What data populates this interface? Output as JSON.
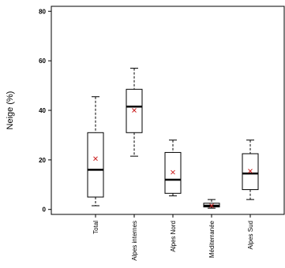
{
  "chart_data": {
    "type": "box",
    "ylabel": "Neige (%)",
    "ylim": [
      -2,
      82
    ],
    "yticks": [
      0,
      20,
      40,
      60,
      80
    ],
    "categories": [
      "Total",
      "Alpes internes",
      "Alpes Nord",
      "Méditerranée",
      "Alpes Sud"
    ],
    "boxes": [
      {
        "category": "Total",
        "whisker_low": 1.5,
        "q1": 5,
        "median": 16,
        "q3": 31,
        "whisker_high": 45.5,
        "mean": 20.5
      },
      {
        "category": "Alpes internes",
        "whisker_low": 21.5,
        "q1": 31,
        "median": 41.5,
        "q3": 48.5,
        "whisker_high": 57,
        "mean": 40
      },
      {
        "category": "Alpes Nord",
        "whisker_low": 5.5,
        "q1": 6.5,
        "median": 12,
        "q3": 23,
        "whisker_high": 28,
        "mean": 15
      },
      {
        "category": "Méditerranée",
        "whisker_low": 0.5,
        "q1": 1,
        "median": 1.5,
        "q3": 2.5,
        "whisker_high": 4,
        "mean": 1.5
      },
      {
        "category": "Alpes Sud",
        "whisker_low": 4,
        "q1": 8,
        "median": 14.5,
        "q3": 22.5,
        "whisker_high": 28,
        "mean": 15.5
      }
    ],
    "colors": {
      "box": "#000000",
      "mean_marker": "#cc2222"
    },
    "grid": false
  }
}
